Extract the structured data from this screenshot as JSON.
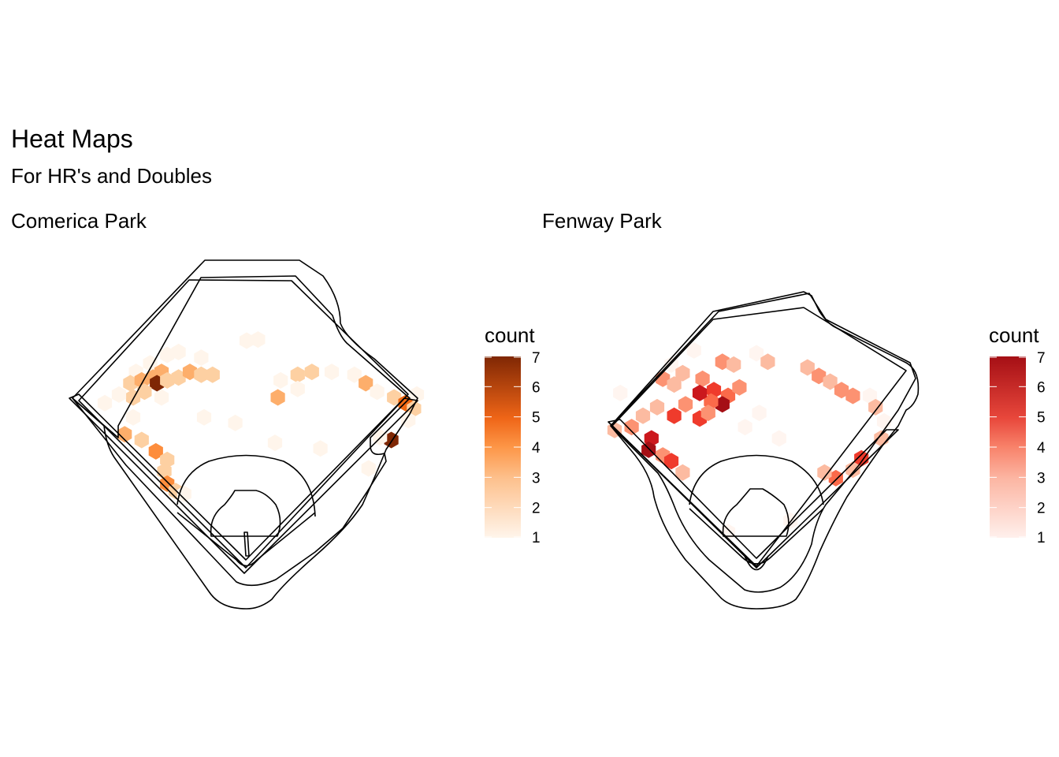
{
  "title": "Heat Maps",
  "subtitle": "For HR's and Doubles",
  "chart_data": [
    {
      "type": "heatmap",
      "geom": "hexbin",
      "title": "Comerica Park",
      "legend": {
        "title": "count",
        "min": 1,
        "max": 7,
        "ticks": [
          1,
          2,
          3,
          4,
          5,
          6,
          7
        ],
        "position": "right"
      },
      "colors": {
        "low": "#fff5eb",
        "high": "#7f2704"
      },
      "grid": false,
      "bins": [
        {
          "x": -140,
          "y": 375,
          "count": 1
        },
        {
          "x": -120,
          "y": 380,
          "count": 1
        },
        {
          "x": -170,
          "y": 360,
          "count": 1
        },
        {
          "x": -195,
          "y": 345,
          "count": 1
        },
        {
          "x": -205,
          "y": 325,
          "count": 2
        },
        {
          "x": -185,
          "y": 330,
          "count": 3
        },
        {
          "x": -165,
          "y": 335,
          "count": 3
        },
        {
          "x": -150,
          "y": 345,
          "count": 3
        },
        {
          "x": -158,
          "y": 325,
          "count": 7
        },
        {
          "x": -140,
          "y": 330,
          "count": 2
        },
        {
          "x": -120,
          "y": 335,
          "count": 2
        },
        {
          "x": -100,
          "y": 345,
          "count": 3
        },
        {
          "x": -80,
          "y": 340,
          "count": 2
        },
        {
          "x": -60,
          "y": 340,
          "count": 2
        },
        {
          "x": -180,
          "y": 310,
          "count": 2
        },
        {
          "x": -200,
          "y": 300,
          "count": 2
        },
        {
          "x": -225,
          "y": 305,
          "count": 1
        },
        {
          "x": -250,
          "y": 290,
          "count": 1
        },
        {
          "x": -150,
          "y": 300,
          "count": 1
        },
        {
          "x": -200,
          "y": 265,
          "count": 1
        },
        {
          "x": -215,
          "y": 235,
          "count": 3
        },
        {
          "x": -185,
          "y": 225,
          "count": 2
        },
        {
          "x": -160,
          "y": 205,
          "count": 4
        },
        {
          "x": -140,
          "y": 190,
          "count": 2
        },
        {
          "x": -145,
          "y": 170,
          "count": 2
        },
        {
          "x": -140,
          "y": 148,
          "count": 4
        },
        {
          "x": -125,
          "y": 135,
          "count": 2
        },
        {
          "x": -110,
          "y": 130,
          "count": 1
        },
        {
          "x": -80,
          "y": 370,
          "count": 1
        },
        {
          "x": 0,
          "y": 400,
          "count": 1
        },
        {
          "x": 20,
          "y": 402,
          "count": 1
        },
        {
          "x": 60,
          "y": 330,
          "count": 1
        },
        {
          "x": 90,
          "y": 340,
          "count": 2
        },
        {
          "x": 55,
          "y": 300,
          "count": 3
        },
        {
          "x": 90,
          "y": 315,
          "count": 1
        },
        {
          "x": 115,
          "y": 345,
          "count": 2
        },
        {
          "x": 150,
          "y": 345,
          "count": 1
        },
        {
          "x": 190,
          "y": 340,
          "count": 1
        },
        {
          "x": 210,
          "y": 325,
          "count": 3
        },
        {
          "x": 230,
          "y": 310,
          "count": 1
        },
        {
          "x": 260,
          "y": 300,
          "count": 2
        },
        {
          "x": 280,
          "y": 290,
          "count": 5
        },
        {
          "x": 300,
          "y": 305,
          "count": 1
        },
        {
          "x": 295,
          "y": 280,
          "count": 2
        },
        {
          "x": 285,
          "y": 260,
          "count": 1
        },
        {
          "x": 255,
          "y": 225,
          "count": 7
        },
        {
          "x": 235,
          "y": 230,
          "count": 1
        },
        {
          "x": 215,
          "y": 175,
          "count": 1
        },
        {
          "x": -75,
          "y": 265,
          "count": 1
        },
        {
          "x": -20,
          "y": 255,
          "count": 1
        },
        {
          "x": 50,
          "y": 220,
          "count": 1
        },
        {
          "x": 130,
          "y": 210,
          "count": 1
        }
      ]
    },
    {
      "type": "heatmap",
      "geom": "hexbin",
      "title": "Fenway Park",
      "legend": {
        "title": "count",
        "min": 1,
        "max": 7,
        "ticks": [
          1,
          2,
          3,
          4,
          5,
          6,
          7
        ],
        "position": "right"
      },
      "colors": {
        "low": "#fff5f0",
        "high": "#a50f15"
      },
      "grid": false,
      "bins": [
        {
          "x": -110,
          "y": 380,
          "count": 1
        },
        {
          "x": -60,
          "y": 360,
          "count": 3
        },
        {
          "x": -40,
          "y": 355,
          "count": 2
        },
        {
          "x": 0,
          "y": 375,
          "count": 1
        },
        {
          "x": 20,
          "y": 360,
          "count": 2
        },
        {
          "x": -150,
          "y": 355,
          "count": 1
        },
        {
          "x": -130,
          "y": 340,
          "count": 2
        },
        {
          "x": -165,
          "y": 330,
          "count": 3
        },
        {
          "x": -145,
          "y": 320,
          "count": 2
        },
        {
          "x": -95,
          "y": 330,
          "count": 3
        },
        {
          "x": -75,
          "y": 310,
          "count": 5
        },
        {
          "x": -50,
          "y": 300,
          "count": 4
        },
        {
          "x": -30,
          "y": 315,
          "count": 3
        },
        {
          "x": -60,
          "y": 285,
          "count": 7
        },
        {
          "x": -80,
          "y": 290,
          "count": 4
        },
        {
          "x": -100,
          "y": 305,
          "count": 6
        },
        {
          "x": -125,
          "y": 285,
          "count": 3
        },
        {
          "x": -145,
          "y": 265,
          "count": 5
        },
        {
          "x": -175,
          "y": 280,
          "count": 2
        },
        {
          "x": -200,
          "y": 265,
          "count": 2
        },
        {
          "x": -220,
          "y": 245,
          "count": 3
        },
        {
          "x": -250,
          "y": 240,
          "count": 2
        },
        {
          "x": -185,
          "y": 225,
          "count": 6
        },
        {
          "x": -190,
          "y": 205,
          "count": 7
        },
        {
          "x": -165,
          "y": 195,
          "count": 3
        },
        {
          "x": -150,
          "y": 185,
          "count": 5
        },
        {
          "x": -130,
          "y": 165,
          "count": 2
        },
        {
          "x": -100,
          "y": 260,
          "count": 5
        },
        {
          "x": -85,
          "y": 270,
          "count": 3
        },
        {
          "x": -240,
          "y": 305,
          "count": 1
        },
        {
          "x": 90,
          "y": 350,
          "count": 2
        },
        {
          "x": 110,
          "y": 335,
          "count": 3
        },
        {
          "x": 130,
          "y": 325,
          "count": 2
        },
        {
          "x": 150,
          "y": 310,
          "count": 3
        },
        {
          "x": 170,
          "y": 300,
          "count": 3
        },
        {
          "x": 200,
          "y": 300,
          "count": 1
        },
        {
          "x": 210,
          "y": 280,
          "count": 2
        },
        {
          "x": 225,
          "y": 255,
          "count": 1
        },
        {
          "x": 220,
          "y": 225,
          "count": 2
        },
        {
          "x": 185,
          "y": 190,
          "count": 5
        },
        {
          "x": 170,
          "y": 170,
          "count": 2
        },
        {
          "x": 140,
          "y": 155,
          "count": 4
        },
        {
          "x": 120,
          "y": 165,
          "count": 2
        },
        {
          "x": 40,
          "y": 225,
          "count": 1
        },
        {
          "x": 5,
          "y": 270,
          "count": 1
        },
        {
          "x": -20,
          "y": 245,
          "count": 1
        },
        {
          "x": -50,
          "y": 60,
          "count": 1
        },
        {
          "x": 60,
          "y": 80,
          "count": 1
        }
      ]
    }
  ]
}
